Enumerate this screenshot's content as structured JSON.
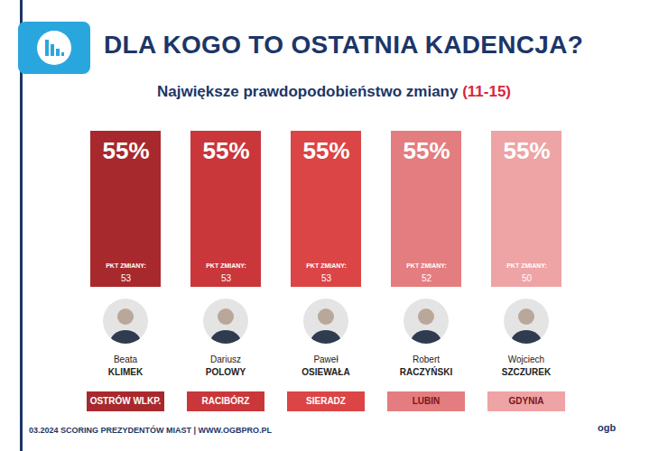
{
  "chart_data": {
    "type": "bar",
    "title": "DLA KOGO TO OSTATNIA KADENCJA?",
    "subtitle": "Największe prawdopodobieństwo zmiany (11-15)",
    "categories": [
      "Beata KLIMEK",
      "Dariusz POLOWY",
      "Paweł OSIEWAŁA",
      "Robert RACZYŃSKI",
      "Wojciech SZCZUREK"
    ],
    "values": [
      55,
      55,
      55,
      55,
      55
    ],
    "value_labels": [
      "55%",
      "55%",
      "55%",
      "55%",
      "55%"
    ],
    "data_labels": true,
    "colors": [
      "#a8292d",
      "#c9373b",
      "#dc4545",
      "#e47d7f",
      "#eea3a4"
    ],
    "ylim": [
      0,
      55
    ],
    "tick_labels": false,
    "points_label": "PKT ZMIANY:",
    "points": [
      53,
      53,
      53,
      52,
      50
    ],
    "cities": [
      "OSTRÓW WLKP.",
      "RACIBÓRZ",
      "SIERADZ",
      "LUBIN",
      "GDYNIA"
    ],
    "footer": "03.2024 SCORING PREZYDENTÓW MIAST | WWW.OGBPRO.PL",
    "logo": "ogb"
  }
}
